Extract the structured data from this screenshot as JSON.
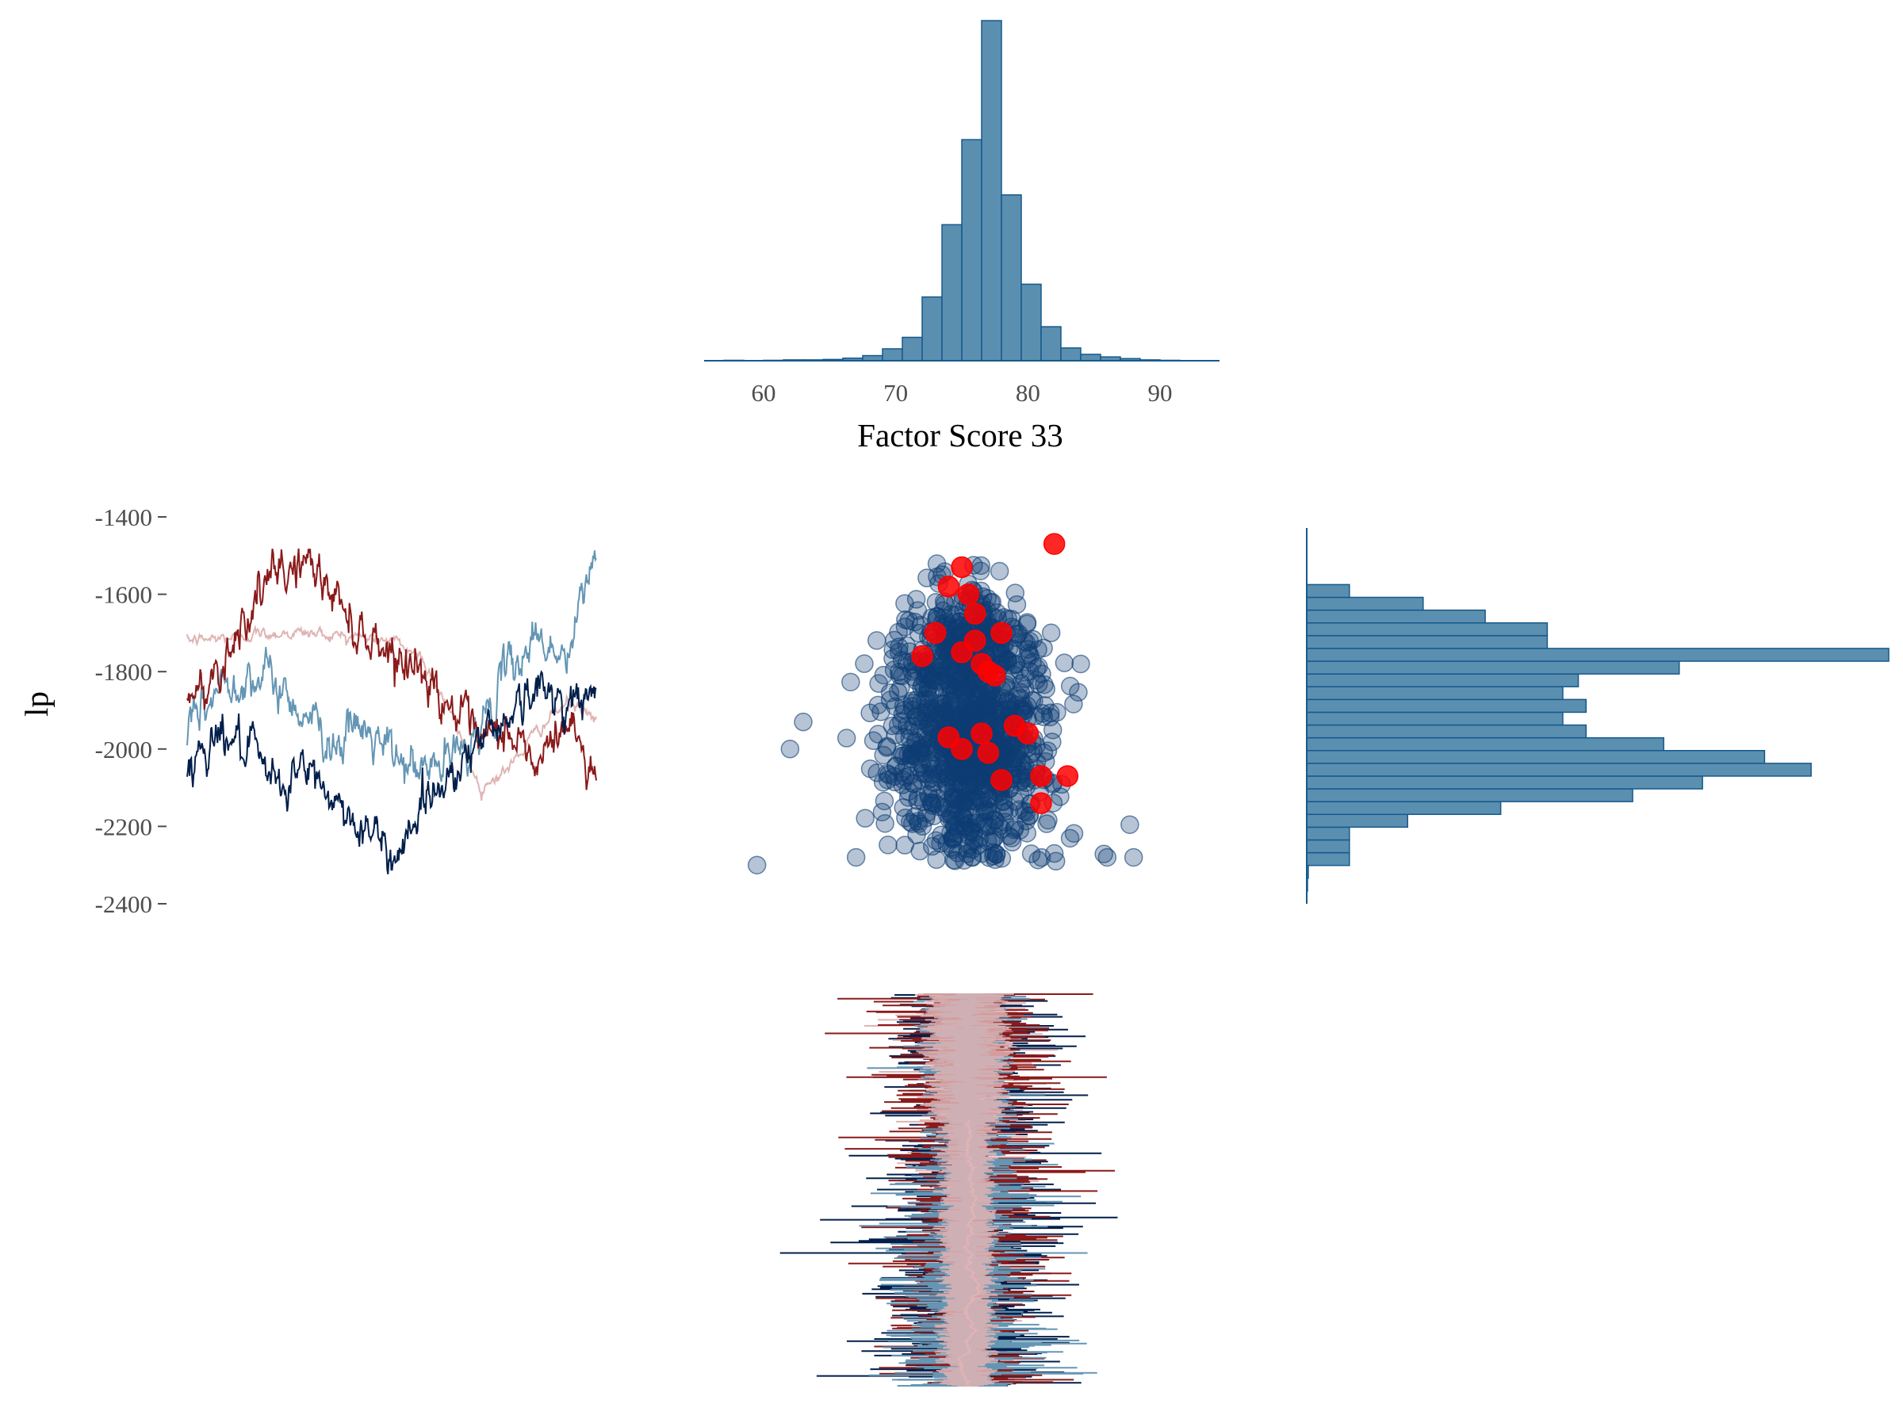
{
  "colors": {
    "hist_fill": "#5b8fb0",
    "hist_stroke": "#16598c",
    "scatter_fill": "#0d3d73",
    "divergent": "#ff0000",
    "chain_1": "#8b1a1a",
    "chain_2": "#e0b4b4",
    "chain_3": "#6496b4",
    "chain_4": "#011f4b"
  },
  "chart_data": [
    {
      "type": "bar",
      "panel": "top-center histogram",
      "xlabel": "Factor Score 33",
      "xlim": [
        55.5,
        94.5
      ],
      "xticks": [
        "60",
        "70",
        "80",
        "90"
      ],
      "bin_width": 1.5,
      "bin_start": 55.5,
      "counts": [
        0,
        1,
        0,
        1,
        2,
        2,
        3,
        6,
        12,
        28,
        55,
        150,
        320,
        520,
        800,
        390,
        180,
        80,
        30,
        15,
        9,
        5,
        2,
        1,
        0,
        0
      ]
    },
    {
      "type": "line",
      "panel": "middle-left trace",
      "ylabel": "lp",
      "ylim": [
        -2400,
        -1400
      ],
      "yticks": [
        "-1400",
        "-1600",
        "-1800",
        "-2000",
        "-2200",
        "-2400"
      ],
      "series": [
        {
          "color": "chain_1",
          "values": [
            -1890,
            -1800,
            -1650,
            -1560,
            -1510,
            -1600,
            -1700,
            -1740,
            -1800,
            -1880,
            -2000,
            -1950,
            -2050,
            -1920,
            -2080
          ]
        },
        {
          "color": "chain_2",
          "values": [
            -1720,
            -1715,
            -1705,
            -1700,
            -1700,
            -1705,
            -1710,
            -1720,
            -1760,
            -1900,
            -2100,
            -2050,
            -1950,
            -1880,
            -1920
          ]
        },
        {
          "color": "chain_3",
          "values": [
            -1970,
            -1850,
            -1800,
            -1830,
            -1900,
            -1980,
            -1950,
            -2020,
            -2060,
            -2030,
            -1950,
            -1800,
            -1700,
            -1780,
            -1470
          ]
        },
        {
          "color": "chain_4",
          "values": [
            -2050,
            -1950,
            -2000,
            -2100,
            -2050,
            -2130,
            -2200,
            -2280,
            -2150,
            -2060,
            -1980,
            -1900,
            -1850,
            -1870,
            -1880
          ]
        }
      ]
    },
    {
      "type": "scatter",
      "panel": "middle-center scatter",
      "xlim": [
        55.5,
        94.5
      ],
      "ylim": [
        -2400,
        -1400
      ],
      "outliers": [
        [
          59.5,
          -2300
        ],
        [
          62,
          -2000
        ],
        [
          63,
          -1930
        ],
        [
          86,
          -2280
        ],
        [
          88,
          -2280
        ],
        [
          84,
          -1780
        ],
        [
          82,
          -2270
        ],
        [
          67,
          -2280
        ]
      ],
      "divergent": [
        [
          74,
          -1580
        ],
        [
          75,
          -1530
        ],
        [
          75.5,
          -1600
        ],
        [
          76,
          -1650
        ],
        [
          76,
          -1720
        ],
        [
          76.5,
          -1780
        ],
        [
          77,
          -1800
        ],
        [
          75,
          -1750
        ],
        [
          73,
          -1700
        ],
        [
          72,
          -1760
        ],
        [
          78,
          -1700
        ],
        [
          82,
          -1470
        ],
        [
          74,
          -1970
        ],
        [
          75,
          -2000
        ],
        [
          76.5,
          -1960
        ],
        [
          77,
          -2010
        ],
        [
          79,
          -1940
        ],
        [
          80,
          -1960
        ],
        [
          81,
          -2070
        ],
        [
          83,
          -2070
        ],
        [
          81,
          -2140
        ],
        [
          78,
          -2080
        ],
        [
          77.5,
          -1810
        ]
      ]
    },
    {
      "type": "bar",
      "panel": "middle-right histogram",
      "orientation": "horizontal",
      "ylim": [
        -2400,
        -1400
      ],
      "bin_width": 33,
      "bin_start": -2400,
      "counts": [
        0,
        1,
        2,
        55,
        55,
        55,
        130,
        250,
        420,
        510,
        650,
        590,
        460,
        360,
        330,
        360,
        330,
        350,
        480,
        750,
        310,
        310,
        230,
        150,
        55,
        0
      ]
    },
    {
      "type": "line",
      "panel": "bottom-center rotated trace",
      "orientation": "vertical",
      "xlim": [
        55.5,
        94.5
      ],
      "series": [
        {
          "color": "chain_2",
          "center": 75
        },
        {
          "color": "chain_3",
          "center": 75.5
        },
        {
          "color": "chain_1",
          "center": 75.5
        },
        {
          "color": "chain_4",
          "center": 75.5
        }
      ]
    }
  ]
}
